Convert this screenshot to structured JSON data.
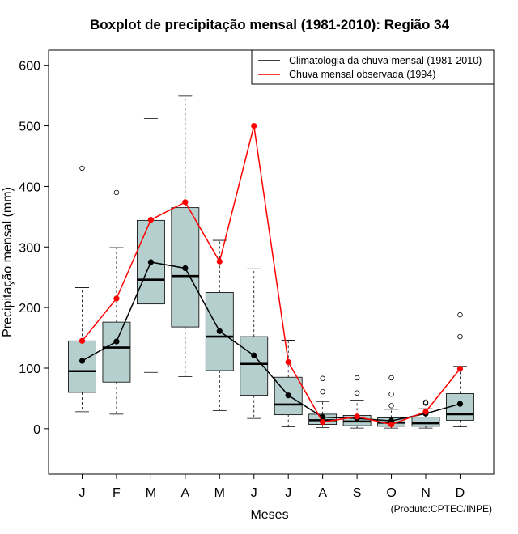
{
  "chart_data": {
    "type": "boxplot",
    "title": "Boxplot de precipitação mensal (1981-2010): Região 34",
    "xlabel": "Meses",
    "ylabel": "Precipitação mensal (mm)",
    "credit": "(Produto:CPTEC/INPE)",
    "categories": [
      "J",
      "F",
      "M",
      "A",
      "M",
      "J",
      "J",
      "A",
      "S",
      "O",
      "N",
      "D"
    ],
    "ylim": [
      -75,
      625
    ],
    "yticks": [
      0,
      100,
      200,
      300,
      400,
      500,
      600
    ],
    "box_color": "#b5cfcf",
    "boxes": [
      {
        "whisker_low": 28,
        "q1": 60,
        "median": 95,
        "q3": 145,
        "whisker_high": 233,
        "outliers": [
          430
        ]
      },
      {
        "whisker_low": 24,
        "q1": 77,
        "median": 134,
        "q3": 176,
        "whisker_high": 299,
        "outliers": [
          390
        ]
      },
      {
        "whisker_low": 93,
        "q1": 206,
        "median": 246,
        "q3": 344,
        "whisker_high": 512,
        "outliers": []
      },
      {
        "whisker_low": 86,
        "q1": 168,
        "median": 252,
        "q3": 365,
        "whisker_high": 549,
        "outliers": []
      },
      {
        "whisker_low": 30,
        "q1": 96,
        "median": 152,
        "q3": 225,
        "whisker_high": 311,
        "outliers": []
      },
      {
        "whisker_low": 17,
        "q1": 55,
        "median": 107,
        "q3": 152,
        "whisker_high": 264,
        "outliers": []
      },
      {
        "whisker_low": 3,
        "q1": 23,
        "median": 40,
        "q3": 85,
        "whisker_high": 146,
        "outliers": []
      },
      {
        "whisker_low": 2,
        "q1": 7,
        "median": 14,
        "q3": 24,
        "whisker_high": 45,
        "outliers": [
          61,
          83
        ]
      },
      {
        "whisker_low": 1,
        "q1": 5,
        "median": 12,
        "q3": 22,
        "whisker_high": 47,
        "outliers": [
          59,
          84
        ]
      },
      {
        "whisker_low": 1,
        "q1": 4,
        "median": 10,
        "q3": 18,
        "whisker_high": 32,
        "outliers": [
          38,
          57,
          84
        ]
      },
      {
        "whisker_low": 1,
        "q1": 4,
        "median": 9,
        "q3": 19,
        "whisker_high": 33,
        "outliers": [
          42,
          44
        ]
      },
      {
        "whisker_low": 3,
        "q1": 14,
        "median": 24,
        "q3": 58,
        "whisker_high": 103,
        "outliers": [
          152,
          188
        ]
      }
    ],
    "series": [
      {
        "name": "Climatologia da chuva mensal (1981-2010)",
        "color": "#000000",
        "values": [
          112,
          144,
          275,
          265,
          161,
          121,
          55,
          19,
          17,
          13,
          25,
          41
        ]
      },
      {
        "name": "Chuva mensal observada (1994)",
        "color": "#ff0000",
        "values": [
          145,
          215,
          345,
          374,
          276,
          500,
          110,
          11,
          20,
          7,
          28,
          99
        ]
      }
    ],
    "legend_position": "top-right"
  }
}
